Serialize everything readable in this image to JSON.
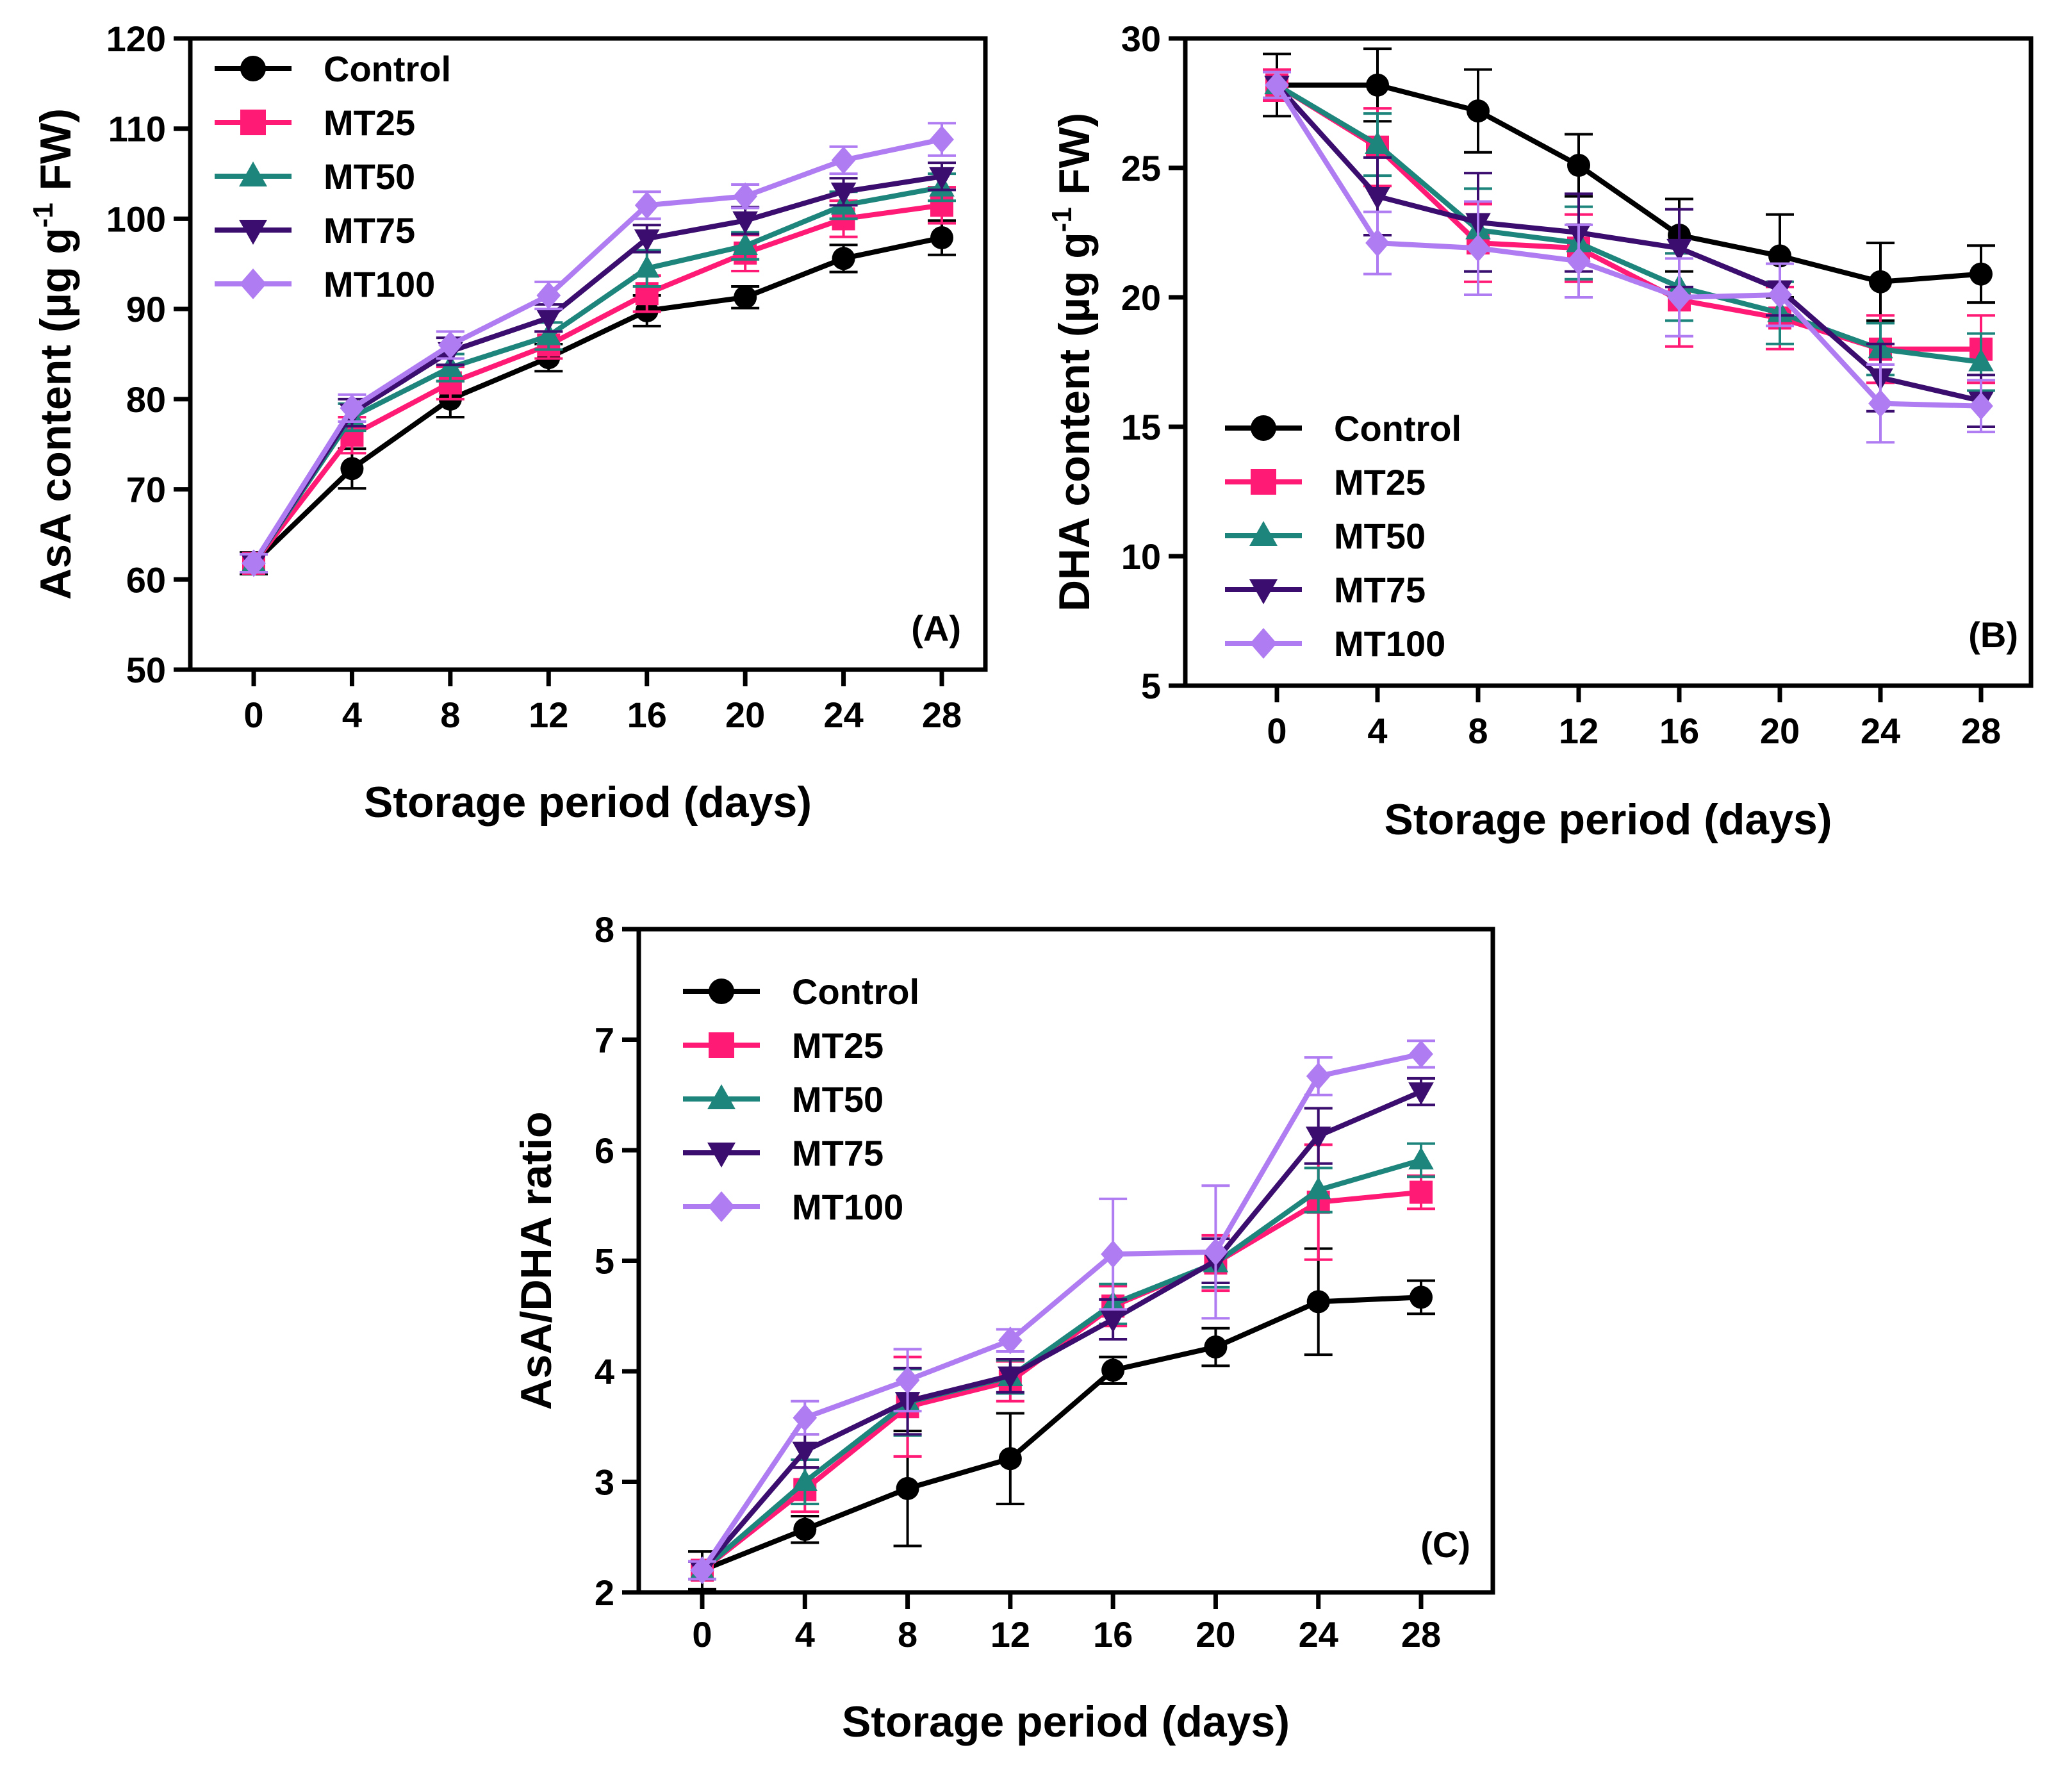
{
  "series_styles": [
    {
      "name": "Control",
      "color": "#000000",
      "marker": "circle"
    },
    {
      "name": "MT25",
      "color": "#ff1a75",
      "marker": "square"
    },
    {
      "name": "MT50",
      "color": "#1e857c",
      "marker": "triangle-up"
    },
    {
      "name": "MT75",
      "color": "#3a0d6e",
      "marker": "triangle-down"
    },
    {
      "name": "MT100",
      "color": "#b07cf2",
      "marker": "diamond"
    }
  ],
  "chart_data": [
    {
      "type": "line",
      "panel_label": "(A)",
      "xlabel": "Storage period (days)",
      "ylabel": "AsA content (µg g",
      "ylabel_sup": "-1",
      "ylabel_tail": " FW)",
      "x": [
        0,
        4,
        8,
        12,
        16,
        20,
        24,
        28
      ],
      "x_tick_labels": [
        "0",
        "4",
        "8",
        "12",
        "16",
        "20",
        "24",
        "28"
      ],
      "ylim": [
        50,
        120
      ],
      "y_ticks": [
        50,
        60,
        70,
        80,
        90,
        100,
        110,
        120
      ],
      "y_tick_labels": [
        "50",
        "60",
        "70",
        "80",
        "90",
        "100",
        "110",
        "120"
      ],
      "legend_position": "top-left",
      "series": [
        {
          "name": "Control",
          "values": [
            61.8,
            72.3,
            80.0,
            84.6,
            89.8,
            91.3,
            95.6,
            97.9
          ],
          "errors": [
            1.2,
            2.2,
            2.0,
            1.5,
            1.7,
            1.2,
            1.5,
            1.9
          ]
        },
        {
          "name": "MT25",
          "values": [
            61.8,
            76.0,
            81.8,
            86.0,
            91.7,
            96.2,
            100.0,
            101.5
          ],
          "errors": [
            1.0,
            2.0,
            1.8,
            1.5,
            2.0,
            2.0,
            2.0,
            2.0
          ]
        },
        {
          "name": "MT50",
          "values": [
            61.8,
            78.0,
            83.5,
            87.0,
            94.5,
            97.0,
            101.5,
            103.5
          ],
          "errors": [
            1.0,
            1.5,
            1.5,
            1.5,
            2.0,
            1.5,
            1.5,
            1.5
          ]
        },
        {
          "name": "MT75",
          "values": [
            61.8,
            78.5,
            85.3,
            89.0,
            97.8,
            99.8,
            103.0,
            104.7
          ],
          "errors": [
            1.0,
            1.5,
            1.5,
            1.5,
            1.5,
            1.5,
            1.5,
            1.5
          ]
        },
        {
          "name": "MT100",
          "values": [
            61.8,
            79.0,
            86.0,
            91.5,
            101.5,
            102.5,
            106.5,
            108.8
          ],
          "errors": [
            1.0,
            1.5,
            1.5,
            1.5,
            1.5,
            1.3,
            1.5,
            1.8
          ]
        }
      ]
    },
    {
      "type": "line",
      "panel_label": "(B)",
      "xlabel": "Storage period (days)",
      "ylabel": "DHA content (µg g",
      "ylabel_sup": "-1",
      "ylabel_tail": " FW)",
      "x": [
        0,
        4,
        8,
        12,
        16,
        20,
        24,
        28
      ],
      "x_tick_labels": [
        "0",
        "4",
        "8",
        "12",
        "16",
        "20",
        "24",
        "28"
      ],
      "ylim": [
        5,
        30
      ],
      "y_ticks": [
        5,
        10,
        15,
        20,
        25,
        30
      ],
      "y_tick_labels": [
        "5",
        "10",
        "15",
        "20",
        "25",
        "30"
      ],
      "legend_position": "bottom-left",
      "series": [
        {
          "name": "Control",
          "values": [
            28.2,
            28.2,
            27.2,
            25.1,
            22.4,
            21.6,
            20.6,
            20.9
          ],
          "errors": [
            1.2,
            1.4,
            1.6,
            1.2,
            1.4,
            1.6,
            1.5,
            1.1
          ]
        },
        {
          "name": "MT25",
          "values": [
            28.2,
            25.8,
            22.1,
            21.9,
            19.9,
            19.2,
            18.0,
            18.0
          ],
          "errors": [
            0.6,
            1.5,
            1.5,
            1.3,
            1.8,
            1.2,
            1.3,
            1.3
          ]
        },
        {
          "name": "MT50",
          "values": [
            28.2,
            25.9,
            22.6,
            22.1,
            20.4,
            19.4,
            18.0,
            17.5
          ],
          "errors": [
            0.5,
            1.2,
            1.6,
            1.4,
            1.3,
            1.2,
            1.0,
            1.1
          ]
        },
        {
          "name": "MT75",
          "values": [
            28.2,
            23.9,
            22.9,
            22.5,
            21.9,
            20.3,
            16.9,
            16.0
          ],
          "errors": [
            0.5,
            1.5,
            1.9,
            1.5,
            1.5,
            1.0,
            1.3,
            1.0
          ]
        },
        {
          "name": "MT100",
          "values": [
            28.2,
            22.1,
            21.9,
            21.4,
            20.0,
            20.1,
            15.9,
            15.8
          ],
          "errors": [
            0.5,
            1.2,
            1.8,
            1.4,
            1.5,
            1.2,
            1.5,
            1.0
          ]
        }
      ]
    },
    {
      "type": "line",
      "panel_label": "(C)",
      "xlabel": "Storage period (days)",
      "ylabel": "AsA/DHA ratio",
      "ylabel_sup": "",
      "ylabel_tail": "",
      "x": [
        0,
        4,
        8,
        12,
        16,
        20,
        24,
        28
      ],
      "x_tick_labels": [
        "0",
        "4",
        "8",
        "12",
        "16",
        "20",
        "24",
        "28"
      ],
      "ylim": [
        2,
        8
      ],
      "y_ticks": [
        2,
        3,
        4,
        5,
        6,
        7,
        8
      ],
      "y_tick_labels": [
        "2",
        "3",
        "4",
        "5",
        "6",
        "7",
        "8"
      ],
      "legend_position": "top-left",
      "series": [
        {
          "name": "Control",
          "values": [
            2.2,
            2.57,
            2.94,
            3.21,
            4.01,
            4.22,
            4.63,
            4.67
          ],
          "errors": [
            0.17,
            0.12,
            0.52,
            0.41,
            0.12,
            0.17,
            0.48,
            0.15
          ]
        },
        {
          "name": "MT25",
          "values": [
            2.2,
            2.93,
            3.68,
            3.91,
            4.59,
            4.98,
            5.53,
            5.62
          ],
          "errors": [
            0.08,
            0.2,
            0.45,
            0.18,
            0.18,
            0.25,
            0.52,
            0.15
          ]
        },
        {
          "name": "MT50",
          "values": [
            2.2,
            3.0,
            3.72,
            3.95,
            4.61,
            4.98,
            5.64,
            5.91
          ],
          "errors": [
            0.08,
            0.2,
            0.3,
            0.15,
            0.18,
            0.22,
            0.2,
            0.15
          ]
        },
        {
          "name": "MT75",
          "values": [
            2.2,
            3.28,
            3.73,
            3.96,
            4.47,
            5.0,
            6.13,
            6.53
          ],
          "errors": [
            0.08,
            0.15,
            0.3,
            0.15,
            0.18,
            0.2,
            0.25,
            0.12
          ]
        },
        {
          "name": "MT100",
          "values": [
            2.2,
            3.58,
            3.92,
            4.28,
            5.06,
            5.08,
            6.67,
            6.87
          ],
          "errors": [
            0.08,
            0.15,
            0.28,
            0.1,
            0.5,
            0.6,
            0.17,
            0.12
          ]
        }
      ]
    }
  ]
}
